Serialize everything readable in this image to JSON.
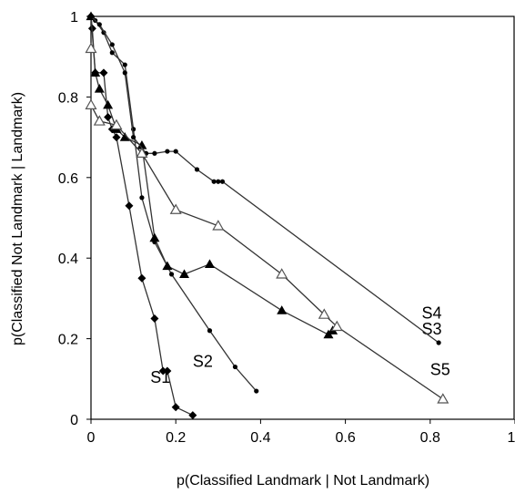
{
  "chart_data": {
    "type": "line",
    "title": "",
    "xlabel": "p(Classified Landmark | Not Landmark)",
    "ylabel": "p(Classified Not Landmark | Landmark)",
    "xlim": [
      0,
      1
    ],
    "ylim": [
      0,
      1
    ],
    "xticks": [
      "0",
      "0.2",
      "0.4",
      "0.6",
      "0.8",
      "1"
    ],
    "yticks": [
      "0",
      "0.2",
      "0.4",
      "0.6",
      "0.8",
      "1"
    ],
    "grid": false,
    "legend": "none",
    "series": [
      {
        "name": "S1",
        "marker": "diamond-filled",
        "label_at": [
          0.14,
          0.09
        ],
        "points": [
          [
            0.0,
            1.0
          ],
          [
            0.003,
            0.97
          ],
          [
            0.01,
            0.86
          ],
          [
            0.03,
            0.86
          ],
          [
            0.04,
            0.75
          ],
          [
            0.05,
            0.72
          ],
          [
            0.06,
            0.7
          ],
          [
            0.09,
            0.53
          ],
          [
            0.12,
            0.35
          ],
          [
            0.15,
            0.25
          ],
          [
            0.17,
            0.12
          ],
          [
            0.18,
            0.12
          ],
          [
            0.2,
            0.03
          ],
          [
            0.24,
            0.01
          ]
        ]
      },
      {
        "name": "S2",
        "marker": "dot-filled",
        "label_at": [
          0.24,
          0.13
        ],
        "points": [
          [
            0.0,
            1.0
          ],
          [
            0.01,
            0.99
          ],
          [
            0.03,
            0.96
          ],
          [
            0.05,
            0.91
          ],
          [
            0.08,
            0.88
          ],
          [
            0.1,
            0.72
          ],
          [
            0.12,
            0.55
          ],
          [
            0.15,
            0.44
          ],
          [
            0.19,
            0.36
          ],
          [
            0.28,
            0.22
          ],
          [
            0.34,
            0.13
          ],
          [
            0.39,
            0.07
          ]
        ]
      },
      {
        "name": "S3",
        "marker": "triangle-filled",
        "label_at": [
          0.78,
          0.21
        ],
        "points": [
          [
            0.0,
            1.0
          ],
          [
            0.01,
            0.86
          ],
          [
            0.02,
            0.82
          ],
          [
            0.04,
            0.78
          ],
          [
            0.06,
            0.72
          ],
          [
            0.08,
            0.7
          ],
          [
            0.12,
            0.68
          ],
          [
            0.15,
            0.45
          ],
          [
            0.18,
            0.38
          ],
          [
            0.22,
            0.36
          ],
          [
            0.28,
            0.385
          ],
          [
            0.45,
            0.27
          ],
          [
            0.56,
            0.21
          ],
          [
            0.57,
            0.22
          ]
        ]
      },
      {
        "name": "S4",
        "marker": "dot-filled",
        "label_at": [
          0.78,
          0.25
        ],
        "points": [
          [
            0.0,
            1.0
          ],
          [
            0.02,
            0.98
          ],
          [
            0.05,
            0.93
          ],
          [
            0.08,
            0.86
          ],
          [
            0.1,
            0.7
          ],
          [
            0.13,
            0.66
          ],
          [
            0.15,
            0.66
          ],
          [
            0.18,
            0.665
          ],
          [
            0.2,
            0.665
          ],
          [
            0.25,
            0.62
          ],
          [
            0.29,
            0.59
          ],
          [
            0.3,
            0.59
          ],
          [
            0.31,
            0.59
          ],
          [
            0.82,
            0.19
          ]
        ]
      },
      {
        "name": "S5",
        "marker": "triangle-open",
        "label_at": [
          0.8,
          0.11
        ],
        "points": [
          [
            0.0,
            0.92
          ],
          [
            0.0,
            0.78
          ],
          [
            0.02,
            0.74
          ],
          [
            0.06,
            0.73
          ],
          [
            0.12,
            0.66
          ],
          [
            0.2,
            0.52
          ],
          [
            0.3,
            0.48
          ],
          [
            0.45,
            0.36
          ],
          [
            0.55,
            0.26
          ],
          [
            0.58,
            0.23
          ],
          [
            0.83,
            0.05
          ]
        ]
      }
    ]
  }
}
